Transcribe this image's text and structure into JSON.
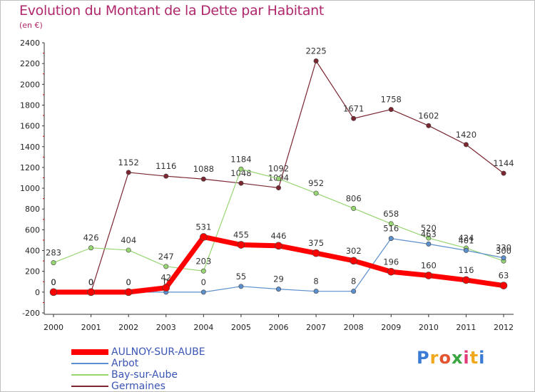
{
  "header": {
    "title": "Evolution du Montant de la Dette par Habitant",
    "subtitle": "(en €)"
  },
  "logo": {
    "text": "Proxiti",
    "colors": [
      "#3a7bd5",
      "#f2a81d",
      "#e4552f",
      "#3aa640",
      "#e23b7a",
      "#f2a81d",
      "#3a7bd5"
    ]
  },
  "chart_data": {
    "type": "line",
    "x": [
      "2000",
      "2001",
      "2002",
      "2003",
      "2004",
      "2005",
      "2006",
      "2007",
      "2008",
      "2009",
      "2010",
      "2011",
      "2012"
    ],
    "ylim": [
      -200,
      2400
    ],
    "yticks": [
      -200,
      0,
      200,
      400,
      600,
      800,
      1000,
      1200,
      1400,
      1600,
      1800,
      2000,
      2200,
      2400
    ],
    "grid": false,
    "legend_position": "bottom-left",
    "series": [
      {
        "name": "Germaines",
        "color": "#7b2630",
        "width": 1.2,
        "values": [
          0,
          0,
          1152,
          1116,
          1088,
          1048,
          1004,
          2225,
          1671,
          1758,
          1602,
          1420,
          1144
        ]
      },
      {
        "name": "Bay-sur-Aube",
        "color": "#97d673",
        "width": 1.2,
        "values": [
          283,
          426,
          404,
          247,
          203,
          1184,
          1092,
          952,
          806,
          658,
          520,
          424,
          300
        ]
      },
      {
        "name": "Arbot",
        "color": "#5c8fcc",
        "width": 1.2,
        "values": [
          0,
          0,
          0,
          0,
          0,
          55,
          29,
          8,
          8,
          516,
          463,
          401,
          330
        ]
      },
      {
        "name": "AULNOY-SUR-AUBE",
        "color": "#ff0000",
        "width": 7,
        "values": [
          0,
          0,
          0,
          42,
          531,
          455,
          446,
          375,
          302,
          196,
          160,
          116,
          63
        ]
      }
    ],
    "legend_order": [
      "AULNOY-SUR-AUBE",
      "Arbot",
      "Bay-sur-Aube",
      "Germaines"
    ]
  }
}
